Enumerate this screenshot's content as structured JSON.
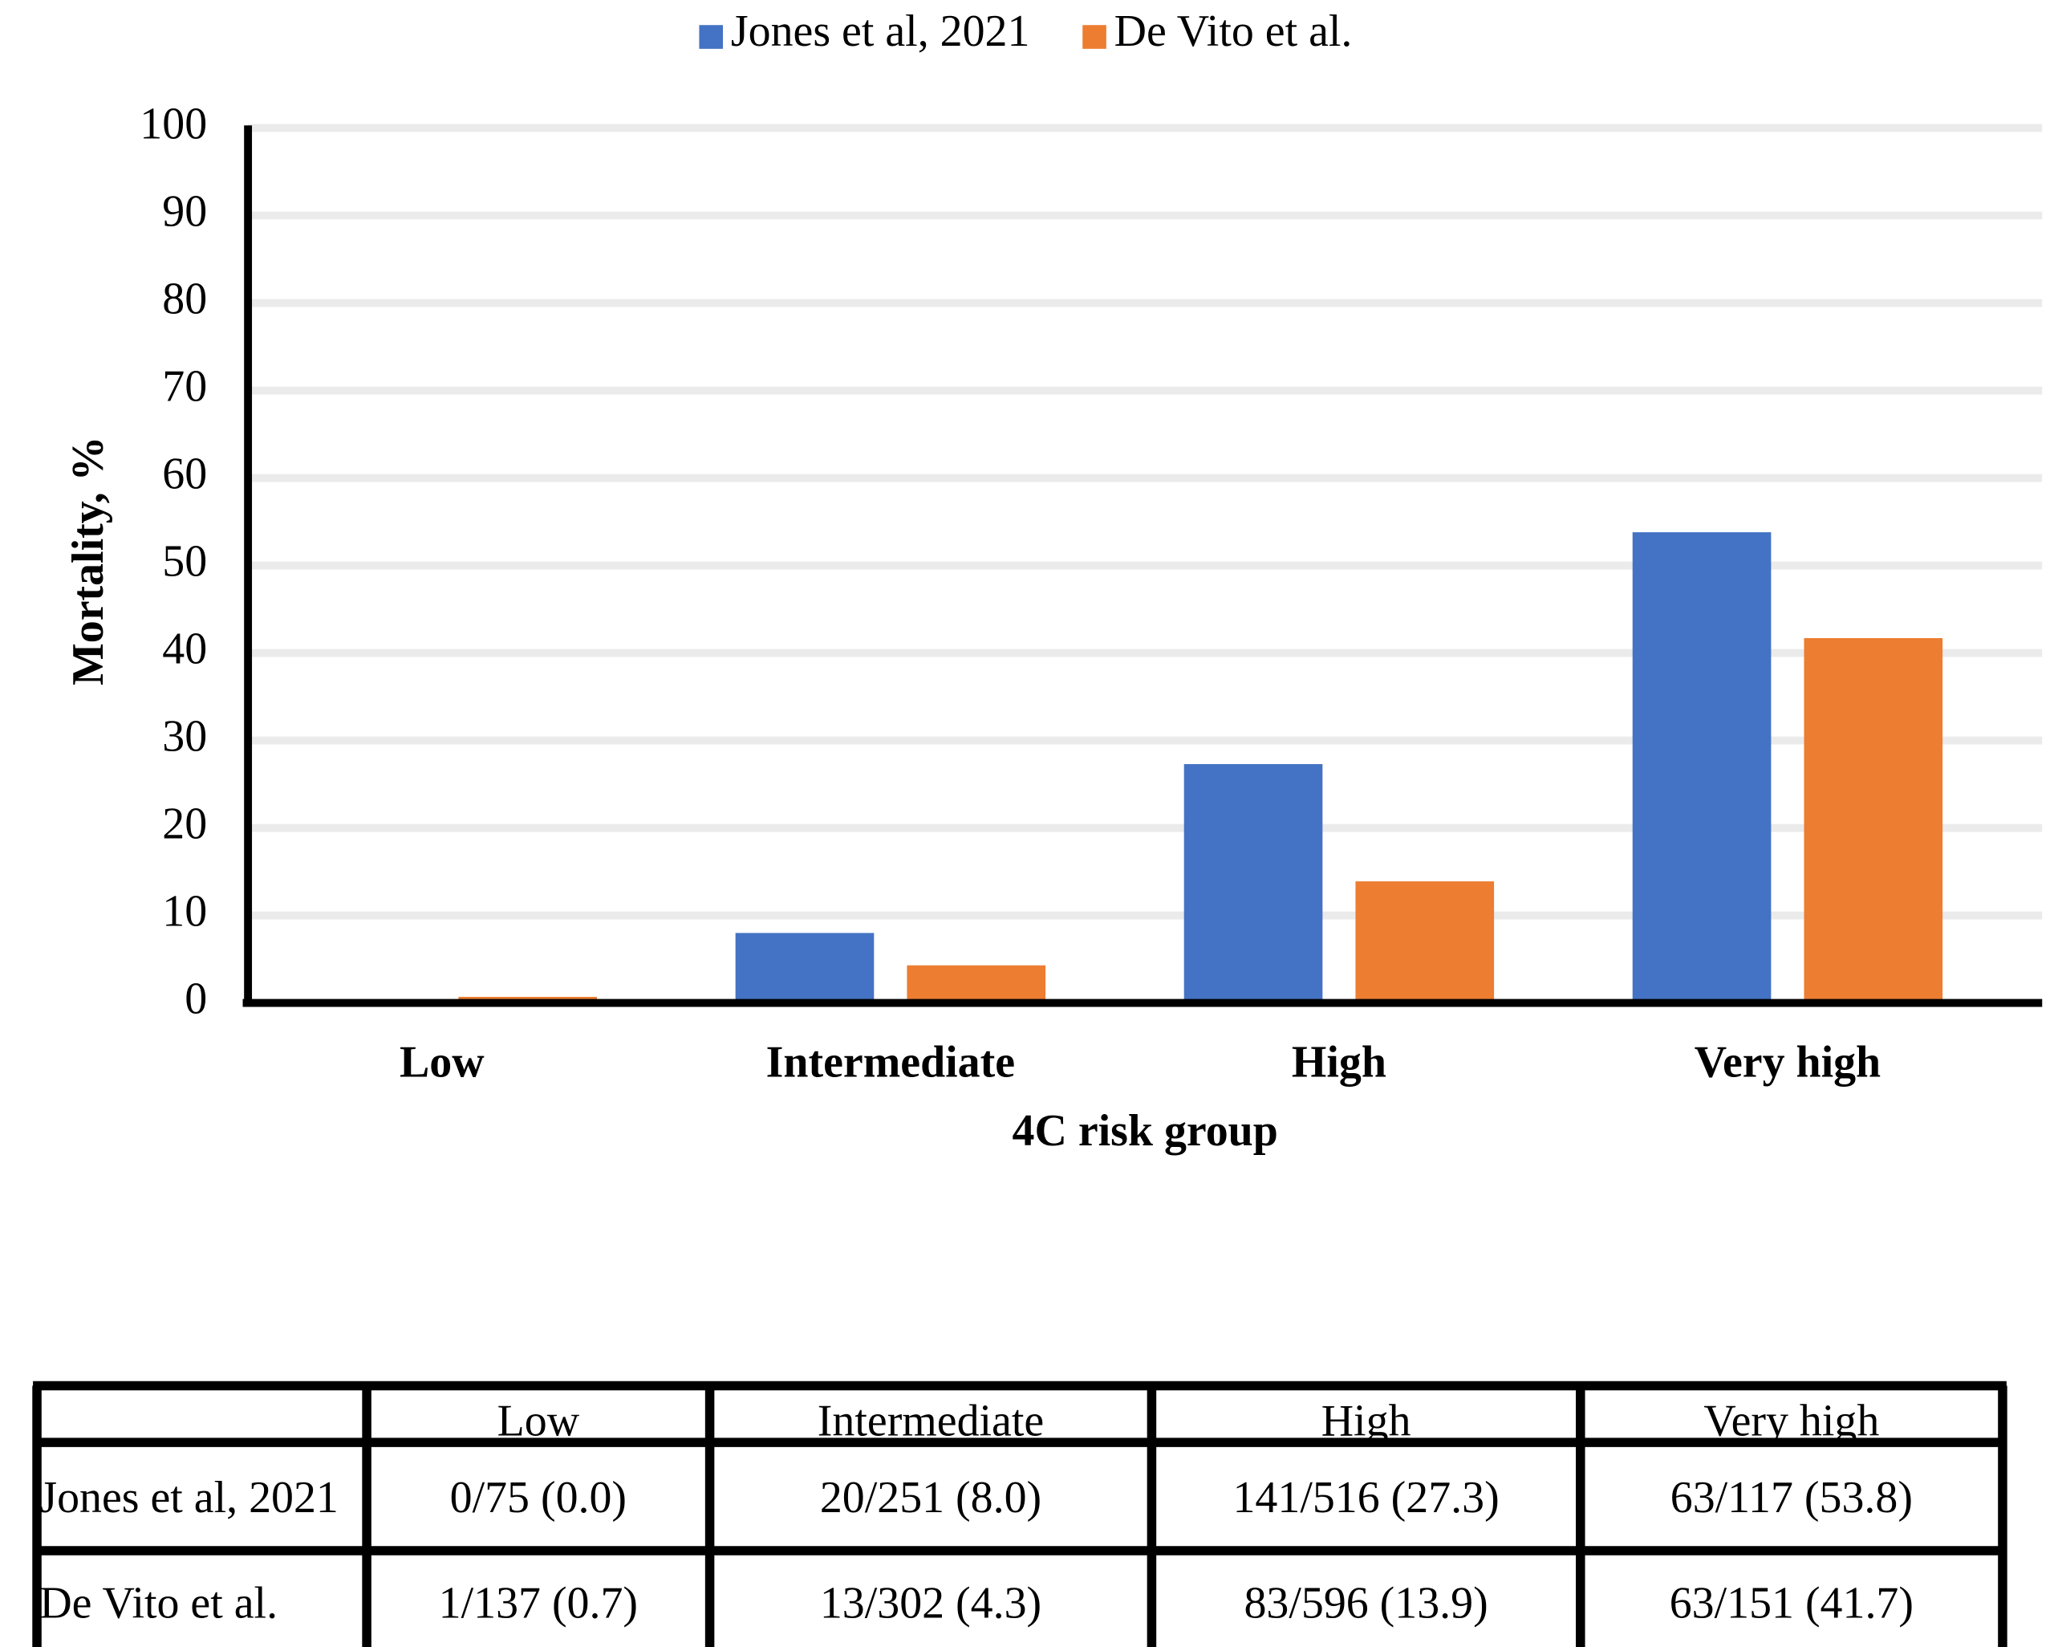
{
  "chart_data": {
    "type": "bar",
    "x_label": "4C risk group",
    "y_label": "Mortality, %",
    "categories": [
      "Low",
      "Intermediate",
      "High",
      "Very high"
    ],
    "series": [
      {
        "name": "Jones et al, 2021",
        "color": "#4472c4",
        "values": [
          0.0,
          8.0,
          27.3,
          53.8
        ]
      },
      {
        "name": "De Vito et al.",
        "color": "#ed7d31",
        "values": [
          0.7,
          4.3,
          13.9,
          41.7
        ]
      }
    ],
    "ylim": [
      0,
      100
    ],
    "yticks": [
      0,
      10,
      20,
      30,
      40,
      50,
      60,
      70,
      80,
      90,
      100
    ],
    "grid": true,
    "legend": "top"
  },
  "table": {
    "header": [
      "Low",
      "Intermediate",
      "High",
      "Very high"
    ],
    "rows": [
      [
        "Jones et al, 2021",
        "0/75 (0.0)",
        "20/251 (8.0)",
        "141/516 (27.3)",
        "63/117 (53.8)"
      ],
      [
        "De Vito et al.",
        "1/137 (0.7)",
        "13/302 (4.3)",
        "83/596 (13.9)",
        "63/151 (41.7)"
      ]
    ]
  }
}
